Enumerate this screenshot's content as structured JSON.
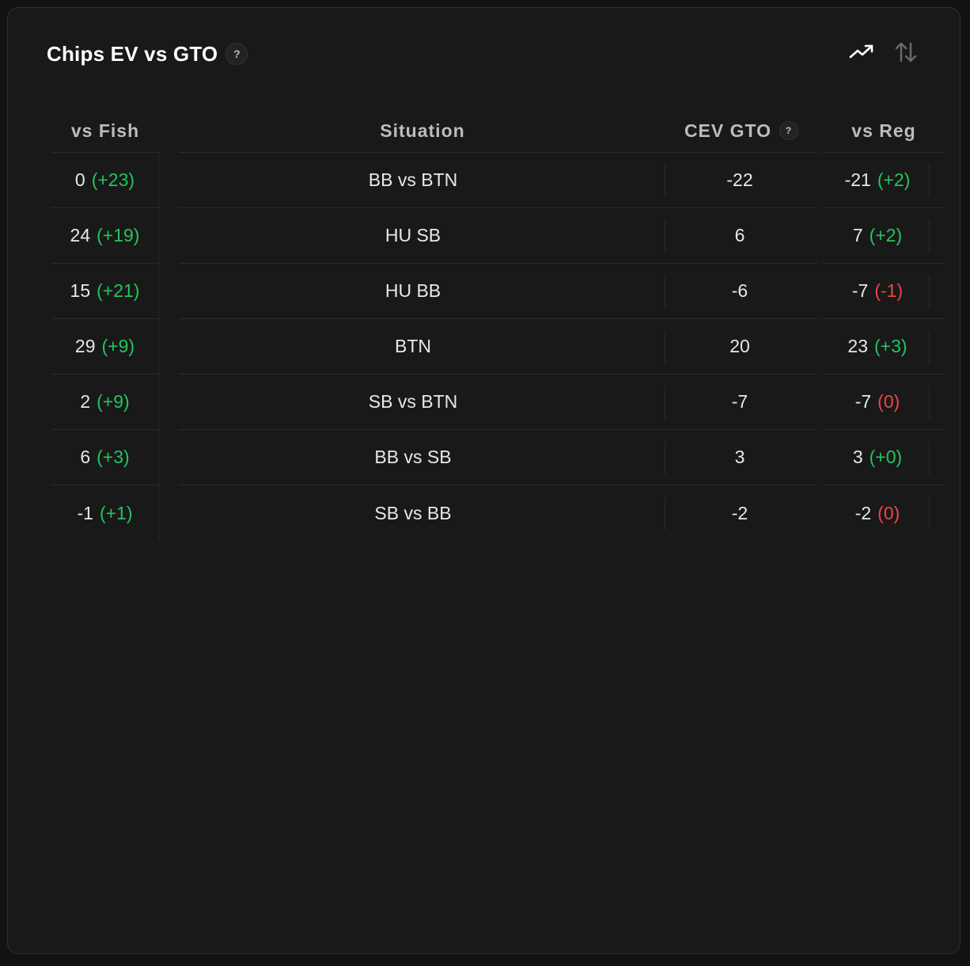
{
  "widget": {
    "title": "Chips EV vs GTO",
    "help_glyph": "?",
    "toolbar": {
      "trend_icon": "trend-up-icon",
      "sort_icon": "sort-arrows-icon"
    }
  },
  "table": {
    "headers": {
      "vs_fish": "vs Fish",
      "situation": "Situation",
      "cev_gto": "CEV GTO",
      "cev_help": "?",
      "vs_reg": "vs Reg"
    },
    "rows": [
      {
        "fish": "0",
        "fish_delta": "(+23)",
        "fish_delta_sign": "pos",
        "situation": "BB vs BTN",
        "cev": "-22",
        "reg": "-21",
        "reg_delta": "(+2)",
        "reg_delta_sign": "pos"
      },
      {
        "fish": "24",
        "fish_delta": "(+19)",
        "fish_delta_sign": "pos",
        "situation": "HU SB",
        "cev": "6",
        "reg": "7",
        "reg_delta": "(+2)",
        "reg_delta_sign": "pos"
      },
      {
        "fish": "15",
        "fish_delta": "(+21)",
        "fish_delta_sign": "pos",
        "situation": "HU BB",
        "cev": "-6",
        "reg": "-7",
        "reg_delta": "(-1)",
        "reg_delta_sign": "neg"
      },
      {
        "fish": "29",
        "fish_delta": "(+9)",
        "fish_delta_sign": "pos",
        "situation": "BTN",
        "cev": "20",
        "reg": "23",
        "reg_delta": "(+3)",
        "reg_delta_sign": "pos"
      },
      {
        "fish": "2",
        "fish_delta": "(+9)",
        "fish_delta_sign": "pos",
        "situation": "SB vs BTN",
        "cev": "-7",
        "reg": "-7",
        "reg_delta": "(0)",
        "reg_delta_sign": "neg"
      },
      {
        "fish": "6",
        "fish_delta": "(+3)",
        "fish_delta_sign": "pos",
        "situation": "BB vs SB",
        "cev": "3",
        "reg": "3",
        "reg_delta": "(+0)",
        "reg_delta_sign": "pos"
      },
      {
        "fish": "-1",
        "fish_delta": "(+1)",
        "fish_delta_sign": "pos",
        "situation": "SB vs BB",
        "cev": "-2",
        "reg": "-2",
        "reg_delta": "(0)",
        "reg_delta_sign": "neg"
      }
    ]
  },
  "colors": {
    "positive": "#22c55e",
    "negative": "#ef4444",
    "background": "#191919"
  }
}
